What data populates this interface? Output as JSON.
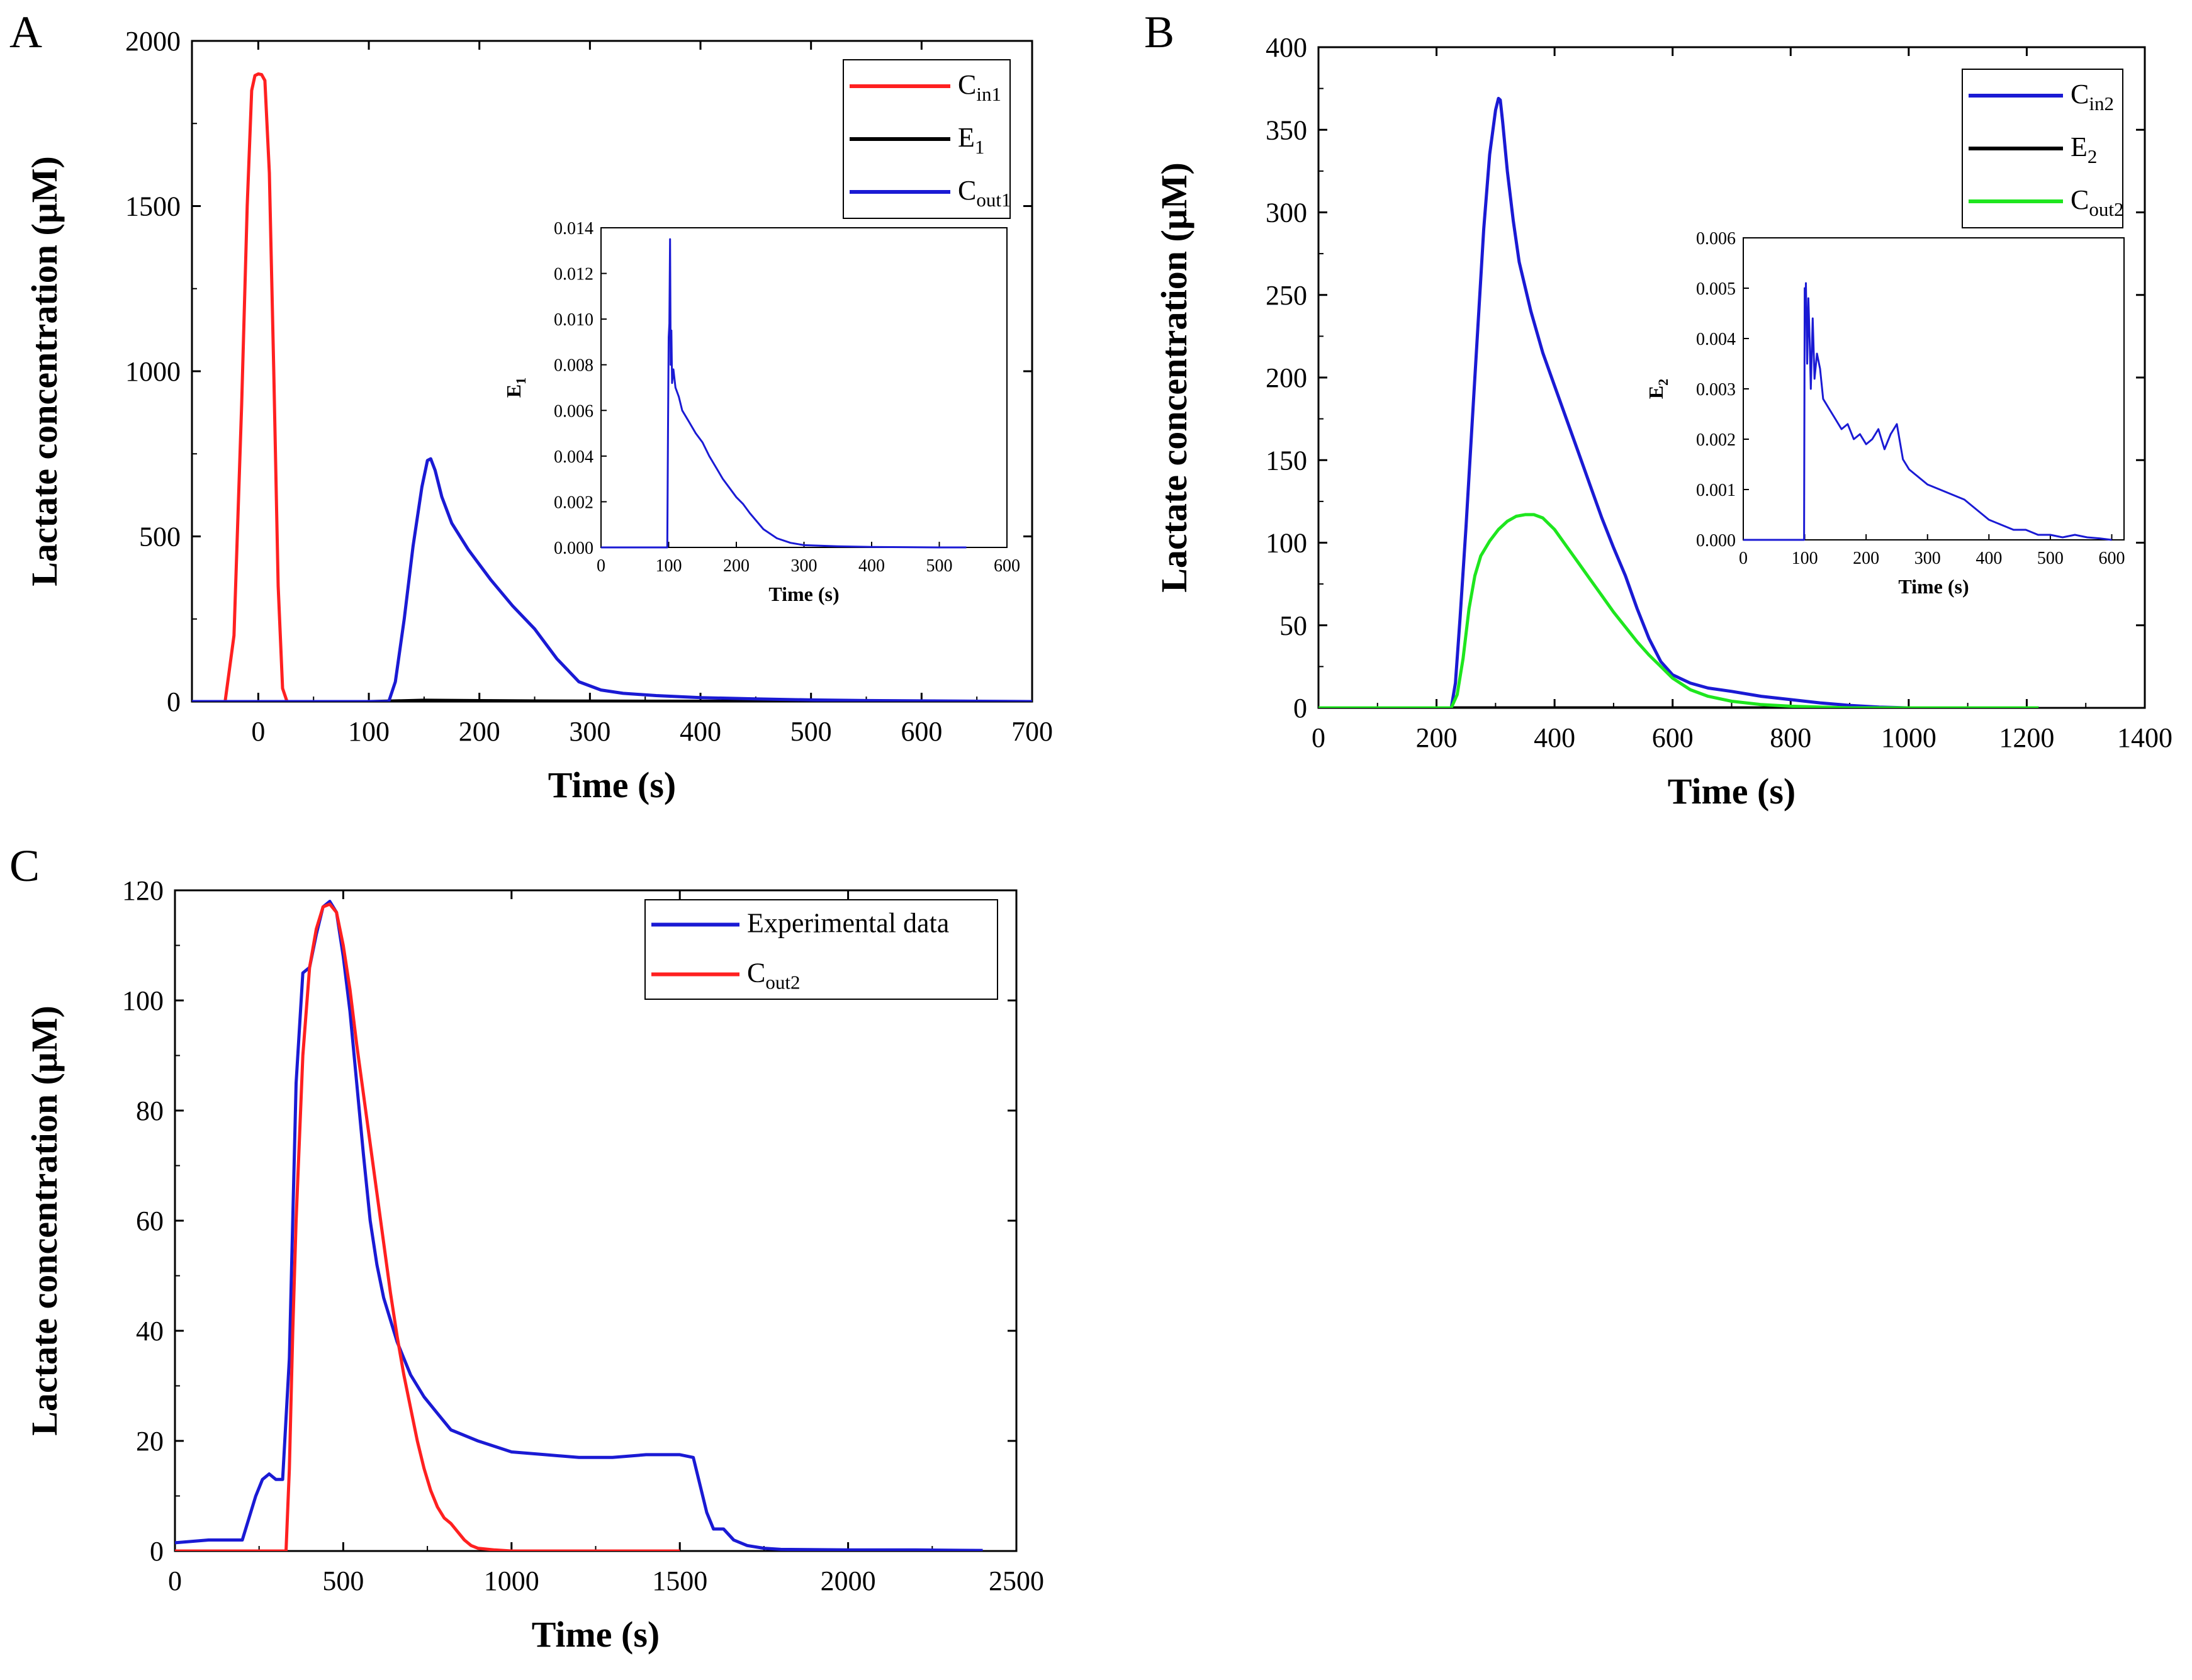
{
  "chart_data": [
    {
      "type": "line",
      "panel_label": "A",
      "xlabel": "Time (s)",
      "ylabel": "Lactate concentration (μM)",
      "xlim": [
        -60,
        700
      ],
      "ylim": [
        0,
        2000
      ],
      "xticks": [
        0,
        100,
        200,
        300,
        400,
        500,
        600,
        700
      ],
      "yticks": [
        0,
        500,
        1000,
        1500,
        2000
      ],
      "legend_position": "top-right",
      "series": [
        {
          "name": "Cin1",
          "label_main": "C",
          "label_sub": "in1",
          "color": "#ff2020",
          "x": [
            -60,
            -30,
            -22,
            -15,
            -10,
            -6,
            -3,
            0,
            3,
            6,
            10,
            14,
            18,
            22,
            26,
            700
          ],
          "y": [
            0,
            0,
            200,
            900,
            1500,
            1850,
            1895,
            1900,
            1898,
            1880,
            1600,
            1000,
            350,
            40,
            0,
            0
          ]
        },
        {
          "name": "E1",
          "label_main": "E",
          "label_sub": "1",
          "color": "#000000",
          "x": [
            -60,
            100,
            150,
            250,
            400,
            700
          ],
          "y": [
            0,
            0,
            4,
            2,
            1,
            0
          ]
        },
        {
          "name": "Cout1",
          "label_main": "C",
          "label_sub": "out1",
          "color": "#1a1ad4",
          "x": [
            -60,
            118,
            124,
            132,
            140,
            148,
            153,
            156,
            160,
            166,
            175,
            190,
            210,
            230,
            250,
            270,
            290,
            310,
            330,
            360,
            400,
            450,
            500,
            550,
            700
          ],
          "y": [
            0,
            0,
            60,
            250,
            470,
            650,
            730,
            735,
            700,
            620,
            540,
            460,
            370,
            290,
            220,
            130,
            60,
            35,
            25,
            18,
            12,
            8,
            5,
            3,
            0
          ]
        }
      ],
      "inset": {
        "ylabel_main": "E",
        "ylabel_sub": "1",
        "xlabel": "Time (s)",
        "xlim": [
          0,
          600
        ],
        "ylim": [
          0,
          0.014
        ],
        "xticks": [
          0,
          100,
          200,
          300,
          400,
          500,
          600
        ],
        "yticks": [
          0.0,
          0.002,
          0.004,
          0.006,
          0.008,
          0.01,
          0.012,
          0.014
        ],
        "ytick_labels": [
          "0.000",
          "0.002",
          "0.004",
          "0.006",
          "0.008",
          "0.010",
          "0.012",
          "0.014"
        ],
        "color": "#1a1ad4",
        "x": [
          0,
          98,
          99,
          100,
          101,
          102,
          103,
          104,
          105,
          107,
          110,
          115,
          120,
          130,
          140,
          150,
          160,
          170,
          180,
          190,
          200,
          210,
          220,
          240,
          260,
          280,
          300,
          350,
          400,
          450,
          500,
          540
        ],
        "y": [
          0,
          0,
          0.005,
          0.0092,
          0.0098,
          0.0135,
          0.008,
          0.0095,
          0.0072,
          0.0078,
          0.007,
          0.0066,
          0.006,
          0.0055,
          0.005,
          0.0046,
          0.004,
          0.0035,
          0.003,
          0.0026,
          0.0022,
          0.0019,
          0.0015,
          0.0008,
          0.0004,
          0.0002,
          0.0001,
          5e-05,
          2e-05,
          1e-05,
          0,
          0
        ]
      }
    },
    {
      "type": "line",
      "panel_label": "B",
      "xlabel": "Time (s)",
      "ylabel": "Lactate concentration (μM)",
      "xlim": [
        0,
        1400
      ],
      "ylim": [
        0,
        400
      ],
      "xticks": [
        0,
        200,
        400,
        600,
        800,
        1000,
        1200,
        1400
      ],
      "yticks": [
        0,
        50,
        100,
        150,
        200,
        250,
        300,
        350,
        400
      ],
      "legend_position": "top-right",
      "series": [
        {
          "name": "Cin2",
          "label_main": "C",
          "label_sub": "in2",
          "color": "#1a1ad4",
          "x": [
            0,
            225,
            232,
            240,
            250,
            260,
            270,
            280,
            290,
            300,
            305,
            308,
            312,
            320,
            330,
            340,
            360,
            380,
            400,
            420,
            440,
            460,
            480,
            500,
            520,
            540,
            560,
            580,
            600,
            630,
            660,
            700,
            750,
            800,
            850,
            900,
            950,
            1000,
            1100,
            1220
          ],
          "y": [
            0,
            0,
            15,
            55,
            110,
            170,
            230,
            290,
            335,
            362,
            369,
            368,
            355,
            325,
            295,
            270,
            240,
            215,
            195,
            175,
            155,
            135,
            115,
            97,
            80,
            60,
            42,
            28,
            20,
            15,
            12,
            10,
            7,
            5,
            3,
            1.5,
            0.5,
            0,
            0,
            0
          ]
        },
        {
          "name": "E2",
          "label_main": "E",
          "label_sub": "2",
          "color": "#000000",
          "x": [
            0,
            1220
          ],
          "y": [
            0,
            0
          ]
        },
        {
          "name": "Cout2",
          "label_main": "C",
          "label_sub": "out2",
          "color": "#1ee61e",
          "x": [
            0,
            225,
            235,
            245,
            255,
            265,
            275,
            290,
            305,
            320,
            335,
            350,
            365,
            380,
            400,
            420,
            440,
            460,
            480,
            500,
            520,
            540,
            560,
            580,
            600,
            630,
            660,
            700,
            750,
            800,
            850,
            900,
            1000,
            1100,
            1220
          ],
          "y": [
            0,
            0,
            8,
            30,
            60,
            80,
            92,
            101,
            108,
            113,
            116,
            117,
            117,
            115,
            108,
            98,
            88,
            78,
            68,
            58,
            49,
            40,
            32,
            25,
            18,
            11,
            7,
            4,
            2,
            1,
            0.5,
            0,
            0,
            0,
            0
          ]
        }
      ],
      "inset": {
        "ylabel_main": "E",
        "ylabel_sub": "2",
        "xlabel": "Time (s)",
        "xlim": [
          0,
          620
        ],
        "ylim": [
          0,
          0.006
        ],
        "xticks": [
          0,
          100,
          200,
          300,
          400,
          500,
          600
        ],
        "yticks": [
          0.0,
          0.001,
          0.002,
          0.003,
          0.004,
          0.005,
          0.006
        ],
        "ytick_labels": [
          "0.000",
          "0.001",
          "0.002",
          "0.003",
          "0.004",
          "0.005",
          "0.006"
        ],
        "color": "#1a1ad4",
        "x": [
          0,
          99,
          100,
          101,
          102,
          104,
          106,
          108,
          110,
          113,
          116,
          120,
          125,
          130,
          140,
          150,
          160,
          170,
          180,
          190,
          200,
          210,
          220,
          230,
          240,
          250,
          260,
          270,
          280,
          290,
          300,
          320,
          340,
          360,
          380,
          400,
          420,
          440,
          460,
          480,
          500,
          520,
          540,
          560,
          580,
          600
        ],
        "y": [
          0,
          0,
          0.005,
          0.0045,
          0.0051,
          0.0035,
          0.0048,
          0.004,
          0.003,
          0.0044,
          0.0032,
          0.0037,
          0.0034,
          0.0028,
          0.0026,
          0.0024,
          0.0022,
          0.0023,
          0.002,
          0.0021,
          0.0019,
          0.002,
          0.0022,
          0.0018,
          0.0021,
          0.0023,
          0.0016,
          0.0014,
          0.0013,
          0.0012,
          0.0011,
          0.001,
          0.0009,
          0.0008,
          0.0006,
          0.0004,
          0.0003,
          0.0002,
          0.0002,
          0.0001,
          0.0001,
          5e-05,
          0.0001,
          5e-05,
          3e-05,
          0
        ]
      }
    },
    {
      "type": "line",
      "panel_label": "C",
      "xlabel": "Time (s)",
      "ylabel": "Lactate concentration (μM)",
      "xlim": [
        0,
        2500
      ],
      "ylim": [
        0,
        120
      ],
      "xticks": [
        0,
        500,
        1000,
        1500,
        2000,
        2500
      ],
      "yticks": [
        0,
        20,
        40,
        60,
        80,
        100,
        120
      ],
      "legend_position": "top-right",
      "series": [
        {
          "name": "Experimental data",
          "label_main": "Experimental data",
          "label_sub": "",
          "color": "#1a1ad4",
          "x": [
            0,
            100,
            200,
            220,
            240,
            260,
            280,
            300,
            320,
            340,
            360,
            380,
            400,
            420,
            440,
            460,
            480,
            500,
            520,
            540,
            560,
            580,
            600,
            620,
            640,
            660,
            680,
            700,
            740,
            780,
            820,
            900,
            1000,
            1100,
            1200,
            1300,
            1400,
            1500,
            1540,
            1560,
            1580,
            1600,
            1630,
            1660,
            1700,
            1750,
            1800,
            2000,
            2200,
            2400
          ],
          "y": [
            1.5,
            2,
            2,
            6,
            10,
            13,
            14,
            13,
            13,
            35,
            85,
            105,
            106,
            112,
            117,
            118,
            116,
            108,
            98,
            85,
            72,
            60,
            52,
            46,
            42,
            38,
            35,
            32,
            28,
            25,
            22,
            20,
            18,
            17.5,
            17,
            17,
            17.5,
            17.5,
            17,
            12,
            7,
            4,
            4,
            2,
            1,
            0.5,
            0.3,
            0.2,
            0.2,
            0.1
          ]
        },
        {
          "name": "Cout2",
          "label_main": "C",
          "label_sub": "out2",
          "color": "#ff2020",
          "x": [
            0,
            330,
            340,
            350,
            360,
            380,
            400,
            420,
            440,
            460,
            480,
            500,
            520,
            540,
            560,
            580,
            600,
            620,
            640,
            660,
            680,
            700,
            720,
            740,
            760,
            780,
            800,
            820,
            840,
            860,
            880,
            900,
            950,
            1000,
            1200,
            1500
          ],
          "y": [
            0,
            0,
            15,
            40,
            60,
            90,
            106,
            113,
            117,
            117.5,
            116,
            110,
            102,
            92,
            83,
            74,
            65,
            56,
            47,
            39,
            32,
            26,
            20,
            15,
            11,
            8,
            6,
            5,
            3.5,
            2,
            1,
            0.5,
            0.2,
            0,
            0,
            0
          ]
        }
      ]
    }
  ]
}
